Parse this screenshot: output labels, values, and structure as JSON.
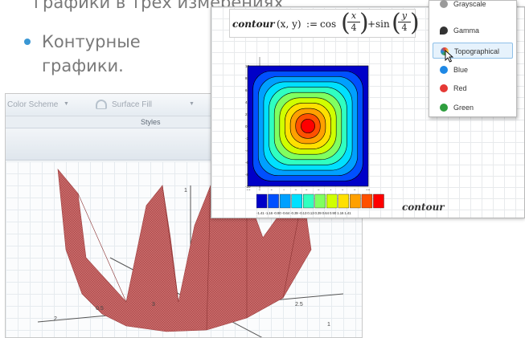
{
  "slide": {
    "top_cut_text": "графики в трёх измерениях",
    "bullet_text": "Контурные графики."
  },
  "surface_window": {
    "ribbon_items": [
      "Color Scheme",
      "Surface Fill"
    ],
    "group_label": "Styles",
    "axis_labels": [
      "1",
      "0.5",
      "2",
      "3",
      "2.5",
      "1"
    ]
  },
  "contour_window": {
    "formula": {
      "name": "contour",
      "args": "(x, y)",
      "assign": ":=",
      "cos": "cos",
      "plus": "+",
      "sin": "sin",
      "num1": "x",
      "den1": "4",
      "num2": "y",
      "den2": "4"
    },
    "y_ticks": [
      "10",
      "8",
      "6",
      "4",
      "2",
      "0",
      "-2",
      "-4",
      "-6",
      "-8",
      "-10"
    ],
    "x_ticks": [
      "-10",
      "-8",
      "-6",
      "-4",
      "-2",
      "0",
      "2",
      "4",
      "6",
      "8",
      "10"
    ],
    "colorbar_labels": "-1.41 -1.16 -0.90 -0.64 -0.39 -0.13  0.13  0.39  0.64  0.90  1.16  1.41",
    "plot_label": "contour",
    "colors": [
      "#0000c8",
      "#0050ff",
      "#00a0ff",
      "#00e0ff",
      "#30ffc0",
      "#80ff60",
      "#d0ff00",
      "#ffe000",
      "#ffa000",
      "#ff5000",
      "#ff0000"
    ]
  },
  "menu": {
    "items": [
      {
        "label": "Grayscale",
        "icon": "grayscale-icon",
        "color": "#9a9a9a"
      },
      {
        "label": "Gamma",
        "icon": "gamma-icon",
        "color": "#333333"
      },
      {
        "label": "Topographical",
        "icon": "topographical-icon",
        "color": "#5aa832",
        "selected": true
      },
      {
        "label": "Blue",
        "icon": "blue-icon",
        "color": "#1e88e5"
      },
      {
        "label": "Red",
        "icon": "red-icon",
        "color": "#e53935"
      },
      {
        "label": "Green",
        "icon": "green-icon",
        "color": "#2e9e3e"
      }
    ]
  }
}
